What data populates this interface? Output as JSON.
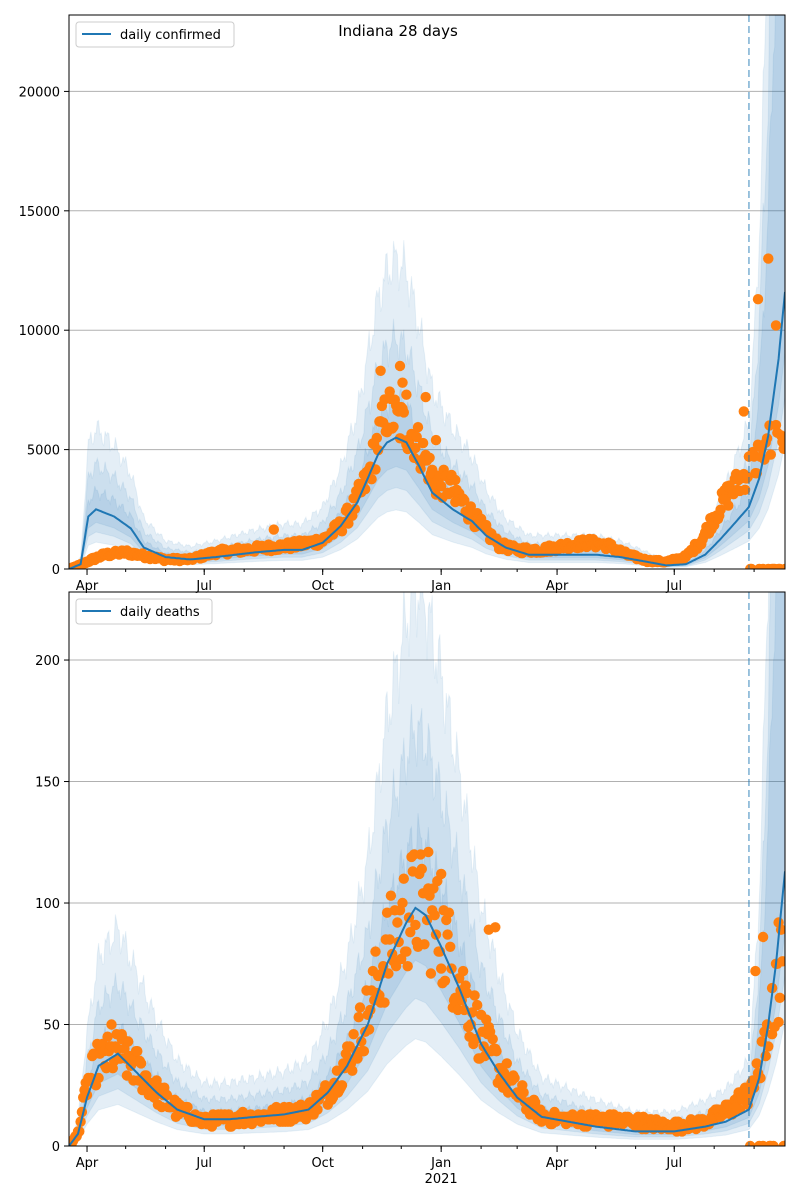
{
  "figure_title": "Indiana 28 days",
  "colors": {
    "line": "#1f77b4",
    "band": "#1f77b4",
    "points": "#ff7f0e",
    "grid": "#b0b0b0",
    "axis": "#000000"
  },
  "x_axis": {
    "range": [
      "2020-03-18",
      "2021-09-25"
    ],
    "tick_labels": [
      {
        "date": "2020-04-01",
        "label": "Apr"
      },
      {
        "date": "2020-07-01",
        "label": "Jul"
      },
      {
        "date": "2020-10-01",
        "label": "Oct"
      },
      {
        "date": "2021-01-01",
        "label": "Jan",
        "sublabel": "2021"
      },
      {
        "date": "2021-04-01",
        "label": "Apr"
      },
      {
        "date": "2021-07-01",
        "label": "Jul"
      }
    ],
    "forecast_start": "2021-08-28"
  },
  "chart_data": [
    {
      "type": "line",
      "series": [
        {
          "name": "daily confirmed"
        }
      ],
      "ylim": [
        0,
        23200
      ],
      "yticks": [
        0,
        5000,
        10000,
        15000,
        20000
      ],
      "grid": true,
      "legend": "top-left",
      "model_keyframes": [
        [
          "2020-03-18",
          0
        ],
        [
          "2020-03-27",
          200
        ],
        [
          "2020-04-02",
          2200
        ],
        [
          "2020-04-08",
          2500
        ],
        [
          "2020-04-22",
          2200
        ],
        [
          "2020-05-05",
          1700
        ],
        [
          "2020-05-15",
          900
        ],
        [
          "2020-06-01",
          500
        ],
        [
          "2020-06-20",
          400
        ],
        [
          "2020-07-10",
          500
        ],
        [
          "2020-08-10",
          700
        ],
        [
          "2020-09-01",
          800
        ],
        [
          "2020-09-15",
          800
        ],
        [
          "2020-10-01",
          1100
        ],
        [
          "2020-10-15",
          1800
        ],
        [
          "2020-10-28",
          2800
        ],
        [
          "2020-11-05",
          3800
        ],
        [
          "2020-11-13",
          4800
        ],
        [
          "2020-11-20",
          5300
        ],
        [
          "2020-11-27",
          5500
        ],
        [
          "2020-12-05",
          5300
        ],
        [
          "2020-12-15",
          4300
        ],
        [
          "2020-12-25",
          3200
        ],
        [
          "2021-01-10",
          2500
        ],
        [
          "2021-01-25",
          2000
        ],
        [
          "2021-02-05",
          1400
        ],
        [
          "2021-02-20",
          900
        ],
        [
          "2021-03-10",
          600
        ],
        [
          "2021-04-01",
          600
        ],
        [
          "2021-05-01",
          600
        ],
        [
          "2021-05-20",
          500
        ],
        [
          "2021-06-10",
          300
        ],
        [
          "2021-06-25",
          150
        ],
        [
          "2021-07-10",
          200
        ],
        [
          "2021-07-25",
          600
        ],
        [
          "2021-08-05",
          1200
        ],
        [
          "2021-08-15",
          1800
        ],
        [
          "2021-08-28",
          2600
        ],
        [
          "2021-09-05",
          3800
        ],
        [
          "2021-09-12",
          5600
        ],
        [
          "2021-09-20",
          8800
        ],
        [
          "2021-09-25",
          11600
        ]
      ],
      "observed_keyframes": [
        [
          "2020-03-18",
          0
        ],
        [
          "2020-03-28",
          200
        ],
        [
          "2020-04-05",
          400
        ],
        [
          "2020-04-15",
          600
        ],
        [
          "2020-05-01",
          700
        ],
        [
          "2020-05-15",
          550
        ],
        [
          "2020-06-01",
          400
        ],
        [
          "2020-06-20",
          400
        ],
        [
          "2020-07-10",
          700
        ],
        [
          "2020-08-01",
          800
        ],
        [
          "2020-08-20",
          900
        ],
        [
          "2020-09-10",
          1000
        ],
        [
          "2020-10-01",
          1200
        ],
        [
          "2020-10-15",
          1800
        ],
        [
          "2020-10-25",
          2600
        ],
        [
          "2020-11-05",
          3800
        ],
        [
          "2020-11-12",
          5200
        ],
        [
          "2020-11-20",
          6600
        ],
        [
          "2020-11-28",
          6200
        ],
        [
          "2020-12-08",
          5800
        ],
        [
          "2020-12-18",
          4800
        ],
        [
          "2020-12-28",
          3600
        ],
        [
          "2021-01-08",
          3500
        ],
        [
          "2021-01-20",
          2600
        ],
        [
          "2021-02-01",
          1800
        ],
        [
          "2021-02-15",
          1000
        ],
        [
          "2021-03-01",
          800
        ],
        [
          "2021-03-20",
          800
        ],
        [
          "2021-04-10",
          1000
        ],
        [
          "2021-04-25",
          1100
        ],
        [
          "2021-05-10",
          1000
        ],
        [
          "2021-05-25",
          600
        ],
        [
          "2021-06-10",
          350
        ],
        [
          "2021-06-25",
          300
        ],
        [
          "2021-07-10",
          500
        ],
        [
          "2021-07-22",
          1200
        ],
        [
          "2021-08-01",
          2200
        ],
        [
          "2021-08-10",
          3000
        ],
        [
          "2021-08-20",
          3600
        ],
        [
          "2021-08-28",
          4200
        ],
        [
          "2021-09-05",
          4800
        ],
        [
          "2021-09-15",
          5200
        ],
        [
          "2021-09-25",
          5500
        ]
      ],
      "outliers": [
        [
          "2020-08-24",
          1650
        ],
        [
          "2020-11-15",
          8300
        ],
        [
          "2020-11-22",
          7200
        ],
        [
          "2020-11-30",
          8500
        ],
        [
          "2020-12-02",
          7800
        ],
        [
          "2020-12-05",
          7300
        ],
        [
          "2020-12-20",
          7200
        ],
        [
          "2020-12-28",
          5400
        ],
        [
          "2021-01-12",
          2800
        ],
        [
          "2021-08-24",
          6600
        ],
        [
          "2021-09-04",
          11300
        ],
        [
          "2021-09-12",
          13000
        ],
        [
          "2021-09-18",
          10200
        ]
      ]
    },
    {
      "type": "line",
      "series": [
        {
          "name": "daily deaths"
        }
      ],
      "ylim": [
        0,
        228
      ],
      "yticks": [
        0,
        50,
        100,
        150,
        200
      ],
      "grid": true,
      "legend": "top-left",
      "model_keyframes": [
        [
          "2020-03-18",
          0
        ],
        [
          "2020-03-25",
          5
        ],
        [
          "2020-04-01",
          20
        ],
        [
          "2020-04-10",
          33
        ],
        [
          "2020-04-25",
          38
        ],
        [
          "2020-05-10",
          30
        ],
        [
          "2020-05-25",
          22
        ],
        [
          "2020-06-10",
          15
        ],
        [
          "2020-07-01",
          11
        ],
        [
          "2020-07-20",
          11
        ],
        [
          "2020-08-10",
          12
        ],
        [
          "2020-09-01",
          13
        ],
        [
          "2020-09-20",
          15
        ],
        [
          "2020-10-05",
          22
        ],
        [
          "2020-10-20",
          33
        ],
        [
          "2020-11-05",
          50
        ],
        [
          "2020-11-20",
          75
        ],
        [
          "2020-12-05",
          92
        ],
        [
          "2020-12-12",
          98
        ],
        [
          "2020-12-20",
          95
        ],
        [
          "2021-01-01",
          82
        ],
        [
          "2021-01-15",
          65
        ],
        [
          "2021-02-01",
          42
        ],
        [
          "2021-02-15",
          30
        ],
        [
          "2021-03-01",
          20
        ],
        [
          "2021-03-20",
          12
        ],
        [
          "2021-04-10",
          10
        ],
        [
          "2021-05-01",
          8
        ],
        [
          "2021-06-01",
          6
        ],
        [
          "2021-07-01",
          6
        ],
        [
          "2021-07-25",
          8
        ],
        [
          "2021-08-10",
          10
        ],
        [
          "2021-08-28",
          15
        ],
        [
          "2021-09-05",
          28
        ],
        [
          "2021-09-12",
          50
        ],
        [
          "2021-09-18",
          75
        ],
        [
          "2021-09-25",
          113
        ]
      ],
      "observed_keyframes": [
        [
          "2020-03-18",
          0
        ],
        [
          "2020-03-25",
          5
        ],
        [
          "2020-04-01",
          25
        ],
        [
          "2020-04-10",
          35
        ],
        [
          "2020-04-25",
          38
        ],
        [
          "2020-05-10",
          32
        ],
        [
          "2020-05-25",
          22
        ],
        [
          "2020-06-10",
          15
        ],
        [
          "2020-07-01",
          10
        ],
        [
          "2020-07-20",
          11
        ],
        [
          "2020-08-10",
          12
        ],
        [
          "2020-09-01",
          13
        ],
        [
          "2020-09-20",
          15
        ],
        [
          "2020-10-05",
          22
        ],
        [
          "2020-10-20",
          35
        ],
        [
          "2020-11-05",
          55
        ],
        [
          "2020-11-20",
          80
        ],
        [
          "2020-12-05",
          95
        ],
        [
          "2020-12-12",
          100
        ],
        [
          "2020-12-20",
          96
        ],
        [
          "2021-01-01",
          88
        ],
        [
          "2021-01-15",
          68
        ],
        [
          "2021-02-01",
          45
        ],
        [
          "2021-02-15",
          32
        ],
        [
          "2021-03-01",
          22
        ],
        [
          "2021-03-20",
          12
        ],
        [
          "2021-04-10",
          11
        ],
        [
          "2021-05-01",
          11
        ],
        [
          "2021-06-01",
          10
        ],
        [
          "2021-07-01",
          8
        ],
        [
          "2021-07-25",
          10
        ],
        [
          "2021-08-10",
          14
        ],
        [
          "2021-08-28",
          22
        ],
        [
          "2021-09-05",
          32
        ],
        [
          "2021-09-12",
          45
        ],
        [
          "2021-09-18",
          62
        ],
        [
          "2021-09-25",
          80
        ]
      ],
      "outliers": [
        [
          "2020-04-20",
          50
        ],
        [
          "2020-04-28",
          46
        ],
        [
          "2020-12-22",
          121
        ],
        [
          "2021-01-01",
          112
        ],
        [
          "2021-02-07",
          89
        ],
        [
          "2021-02-12",
          90
        ],
        [
          "2021-09-02",
          72
        ],
        [
          "2021-09-08",
          86
        ],
        [
          "2021-09-15",
          65
        ],
        [
          "2021-09-20",
          92
        ]
      ]
    }
  ]
}
